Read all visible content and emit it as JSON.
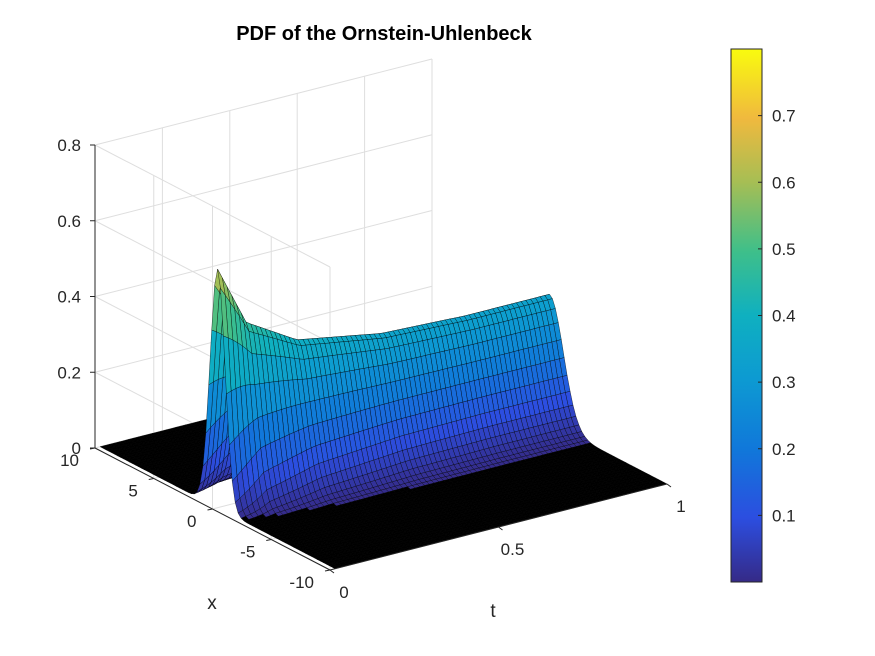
{
  "chart_data": {
    "type": "surface",
    "title": "PDF of the Ornstein-Uhlenbeck",
    "xlabel": "t",
    "ylabel": "x",
    "zlabel": "",
    "xlim": [
      0,
      1
    ],
    "ylim": [
      -10,
      10
    ],
    "zlim": [
      0,
      0.8
    ],
    "x_ticks": [
      {
        "value": 0,
        "label": "0"
      },
      {
        "value": 0.5,
        "label": "0.5"
      },
      {
        "value": 1,
        "label": "1"
      }
    ],
    "y_ticks": [
      {
        "value": -10,
        "label": "-10"
      },
      {
        "value": -5,
        "label": "-5"
      },
      {
        "value": 0,
        "label": "0"
      },
      {
        "value": 5,
        "label": "5"
      },
      {
        "value": 10,
        "label": "10"
      }
    ],
    "z_ticks": [
      {
        "value": 0,
        "label": "0"
      },
      {
        "value": 0.2,
        "label": "0.2"
      },
      {
        "value": 0.4,
        "label": "0.4"
      },
      {
        "value": 0.6,
        "label": "0.6"
      },
      {
        "value": 0.8,
        "label": "0.8"
      }
    ],
    "surface": {
      "description_of_shape": "Gaussian in x for each t; peak ~0.63 at t near 0, decaying to ~0.34 by t = 1",
      "t_start": 0.015,
      "t_end": 1.0,
      "x_start": -10,
      "x_end": 10,
      "peak_values": [
        {
          "t": 0.015,
          "z": 0.63
        },
        {
          "t": 0.1,
          "z": 0.47
        },
        {
          "t": 0.25,
          "z": 0.39
        },
        {
          "t": 0.5,
          "z": 0.35
        },
        {
          "t": 0.75,
          "z": 0.34
        },
        {
          "t": 1.0,
          "z": 0.34
        }
      ]
    },
    "colormap": "parula",
    "colorbar": {
      "range": [
        0,
        0.8
      ],
      "ticks": [
        {
          "value": 0.1,
          "label": "0.1"
        },
        {
          "value": 0.2,
          "label": "0.2"
        },
        {
          "value": 0.3,
          "label": "0.3"
        },
        {
          "value": 0.4,
          "label": "0.4"
        },
        {
          "value": 0.5,
          "label": "0.5"
        },
        {
          "value": 0.6,
          "label": "0.6"
        },
        {
          "value": 0.7,
          "label": "0.7"
        }
      ]
    },
    "grid": true,
    "view": "3d-perspective"
  }
}
